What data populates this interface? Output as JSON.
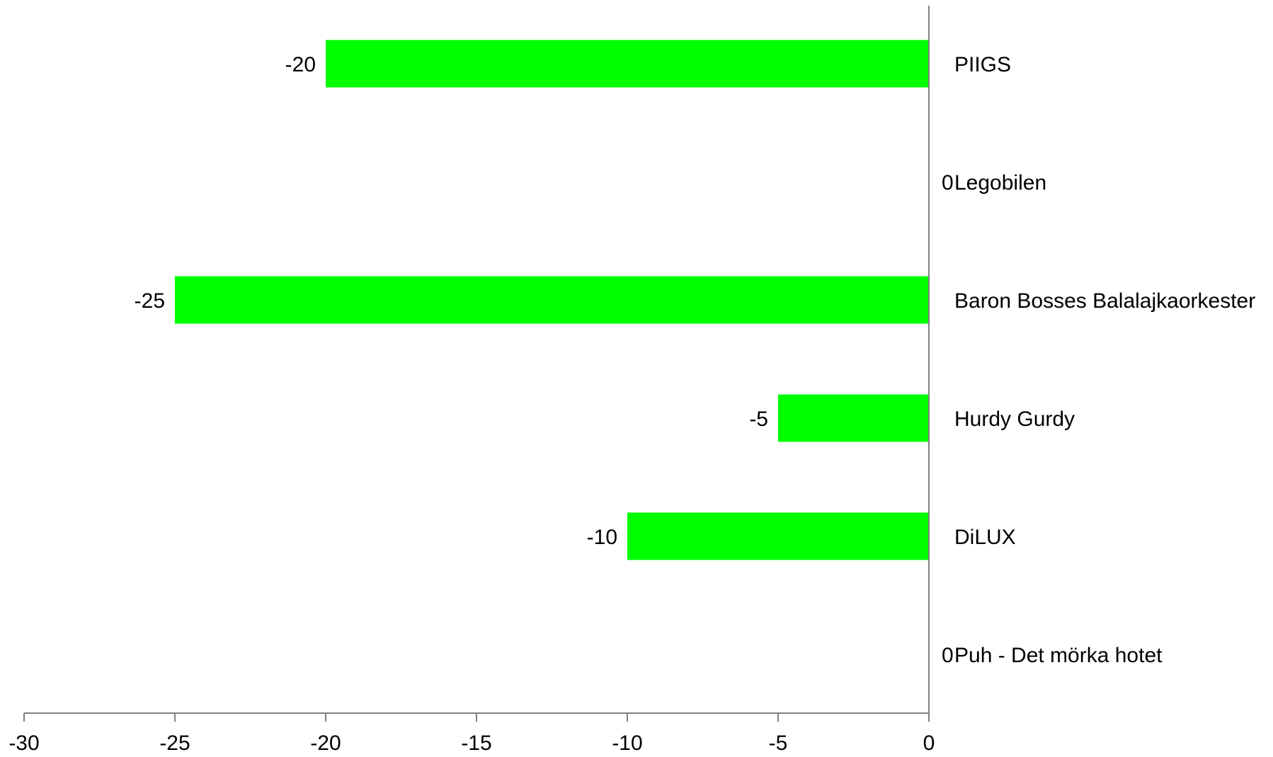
{
  "chart_data": {
    "type": "bar",
    "orientation": "horizontal",
    "categories": [
      "PIIGS",
      "Legobilen",
      "Baron Bosses Balalajkaorkester",
      "Hurdy Gurdy",
      "DiLUX",
      "Puh - Det mörka hotet"
    ],
    "values": [
      -20,
      0,
      -25,
      -5,
      -10,
      0
    ],
    "data_labels": [
      "-20",
      "0",
      "-25",
      "-5",
      "-10",
      "0"
    ],
    "xlim": [
      -30,
      0
    ],
    "x_ticks": [
      -30,
      -25,
      -20,
      -15,
      -10,
      -5,
      0
    ],
    "x_tick_labels": [
      "-30",
      "-25",
      "-20",
      "-15",
      "-10",
      "-5",
      "0"
    ],
    "bar_color": "#00ff00",
    "axis_color": "#808080",
    "grid": false,
    "legend": "none",
    "title": "",
    "xlabel": "",
    "ylabel": ""
  }
}
